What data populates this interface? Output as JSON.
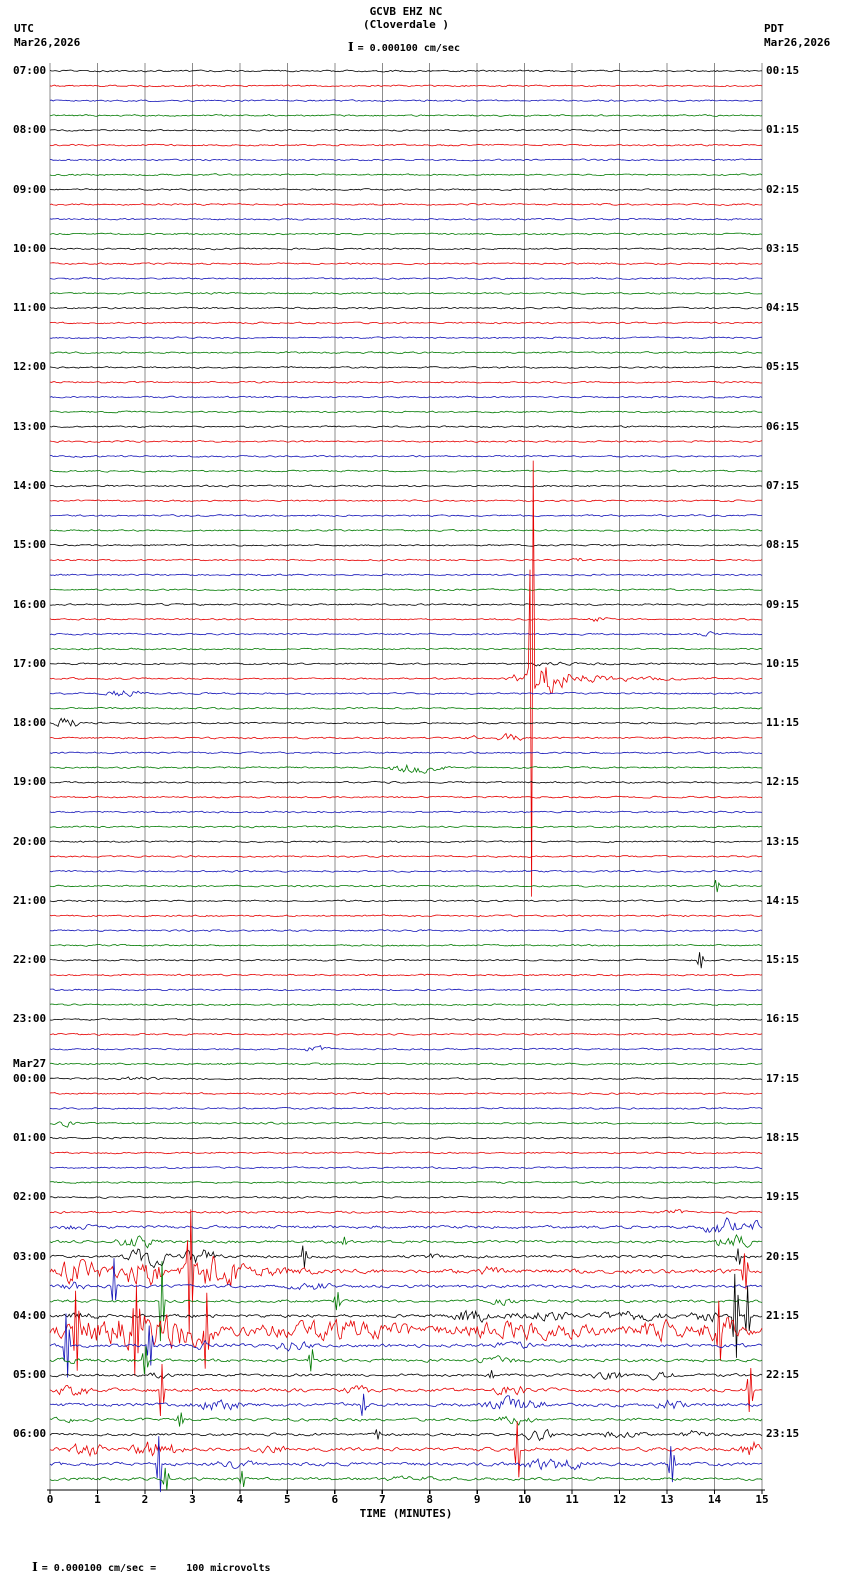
{
  "header": {
    "station_line": "GCVB EHZ NC",
    "location_line": "(Cloverdale )",
    "left_tz": "UTC",
    "left_date": "Mar26,2026",
    "right_tz": "PDT",
    "right_date": "Mar26,2026",
    "scale_text": "= 0.000100 cm/sec"
  },
  "footer": {
    "xlabel": "TIME (MINUTES)",
    "note": "= 0.000100 cm/sec =     100 microvolts",
    "x_ticks": [
      0,
      1,
      2,
      3,
      4,
      5,
      6,
      7,
      8,
      9,
      10,
      11,
      12,
      13,
      14,
      15
    ]
  },
  "chart_data": {
    "type": "seismogram-helicorder",
    "station": "GCVB EHZ NC",
    "location": "Cloverdale",
    "minutes_per_line": 15,
    "x_range": [
      0,
      15
    ],
    "row_count": 96,
    "trace_color_cycle": [
      "#000000",
      "#e60000",
      "#1414b8",
      "#007a00"
    ],
    "grid_color": "#8c8c8c",
    "base_noise": 1.2,
    "noise_overrides": {
      "77": 1.5,
      "78": 2.2,
      "79": 1.9,
      "80": 2.0,
      "81": 3.2,
      "82": 2.3,
      "83": 2.0,
      "84": 2.4,
      "85": 6.0,
      "86": 2.6,
      "87": 2.3,
      "88": 2.0,
      "89": 2.6,
      "90": 2.5,
      "91": 2.0,
      "92": 2.0,
      "93": 2.6,
      "94": 2.5,
      "95": 2.0
    },
    "utc_labels": [
      {
        "row": 0,
        "text": "07:00"
      },
      {
        "row": 4,
        "text": "08:00"
      },
      {
        "row": 8,
        "text": "09:00"
      },
      {
        "row": 12,
        "text": "10:00"
      },
      {
        "row": 16,
        "text": "11:00"
      },
      {
        "row": 20,
        "text": "12:00"
      },
      {
        "row": 24,
        "text": "13:00"
      },
      {
        "row": 28,
        "text": "14:00"
      },
      {
        "row": 32,
        "text": "15:00"
      },
      {
        "row": 36,
        "text": "16:00"
      },
      {
        "row": 40,
        "text": "17:00"
      },
      {
        "row": 44,
        "text": "18:00"
      },
      {
        "row": 48,
        "text": "19:00"
      },
      {
        "row": 52,
        "text": "20:00"
      },
      {
        "row": 56,
        "text": "21:00"
      },
      {
        "row": 60,
        "text": "22:00"
      },
      {
        "row": 64,
        "text": "23:00"
      },
      {
        "row": 67,
        "text": "Mar27"
      },
      {
        "row": 68,
        "text": "00:00"
      },
      {
        "row": 72,
        "text": "01:00"
      },
      {
        "row": 76,
        "text": "02:00"
      },
      {
        "row": 80,
        "text": "03:00"
      },
      {
        "row": 84,
        "text": "04:00"
      },
      {
        "row": 88,
        "text": "05:00"
      },
      {
        "row": 92,
        "text": "06:00"
      }
    ],
    "pdt_labels": [
      {
        "row": 0,
        "text": "00:15"
      },
      {
        "row": 4,
        "text": "01:15"
      },
      {
        "row": 8,
        "text": "02:15"
      },
      {
        "row": 12,
        "text": "03:15"
      },
      {
        "row": 16,
        "text": "04:15"
      },
      {
        "row": 20,
        "text": "05:15"
      },
      {
        "row": 24,
        "text": "06:15"
      },
      {
        "row": 28,
        "text": "07:15"
      },
      {
        "row": 32,
        "text": "08:15"
      },
      {
        "row": 36,
        "text": "09:15"
      },
      {
        "row": 40,
        "text": "10:15"
      },
      {
        "row": 44,
        "text": "11:15"
      },
      {
        "row": 48,
        "text": "12:15"
      },
      {
        "row": 52,
        "text": "13:15"
      },
      {
        "row": 56,
        "text": "14:15"
      },
      {
        "row": 60,
        "text": "15:15"
      },
      {
        "row": 64,
        "text": "16:15"
      },
      {
        "row": 68,
        "text": "17:15"
      },
      {
        "row": 72,
        "text": "18:15"
      },
      {
        "row": 76,
        "text": "19:15"
      },
      {
        "row": 80,
        "text": "20:15"
      },
      {
        "row": 84,
        "text": "21:15"
      },
      {
        "row": 88,
        "text": "22:15"
      },
      {
        "row": 92,
        "text": "23:15"
      }
    ],
    "events": [
      [
        33,
        "b",
        10.9,
        11.3,
        3
      ],
      [
        37,
        "b",
        11.3,
        11.8,
        3
      ],
      [
        38,
        "b",
        13.6,
        14.1,
        2.5
      ],
      [
        40,
        "d",
        10.2,
        12.5,
        3
      ],
      [
        41,
        "b",
        9.55,
        9.95,
        6
      ],
      [
        41,
        "b",
        9.95,
        10.75,
        35
      ],
      [
        41,
        "s",
        10.15,
        10.15,
        218
      ],
      [
        41,
        "d",
        10.75,
        14.2,
        11
      ],
      [
        42,
        "b",
        1.1,
        2.05,
        5
      ],
      [
        44,
        "b",
        0.05,
        0.65,
        8
      ],
      [
        45,
        "b",
        8.75,
        9.1,
        2.5
      ],
      [
        45,
        "b",
        9.35,
        10.05,
        6
      ],
      [
        47,
        "b",
        6.95,
        8.45,
        7
      ],
      [
        55,
        "s",
        14.05,
        14.05,
        6
      ],
      [
        60,
        "s",
        13.7,
        13.7,
        8
      ],
      [
        66,
        "b",
        5.25,
        6.0,
        3.5
      ],
      [
        68,
        "b",
        1.4,
        2.3,
        2.5
      ],
      [
        71,
        "b",
        0.0,
        0.6,
        4.5
      ],
      [
        77,
        "b",
        12.9,
        13.4,
        3
      ],
      [
        78,
        "b",
        0.2,
        0.9,
        3
      ],
      [
        78,
        "b",
        13.7,
        14.7,
        13
      ],
      [
        78,
        "b",
        14.7,
        15,
        7
      ],
      [
        79,
        "b",
        1.3,
        2.4,
        8
      ],
      [
        79,
        "s",
        6.2,
        6.2,
        5
      ],
      [
        79,
        "b",
        13.9,
        14.9,
        9
      ],
      [
        80,
        "b",
        1.45,
        2.65,
        13
      ],
      [
        80,
        "b",
        2.65,
        3.7,
        10
      ],
      [
        80,
        "s",
        5.35,
        5.35,
        11
      ],
      [
        80,
        "b",
        7.9,
        8.3,
        4
      ],
      [
        80,
        "s",
        14.5,
        14.5,
        8
      ],
      [
        81,
        "b",
        0.0,
        1.2,
        16
      ],
      [
        81,
        "b",
        1.2,
        2.6,
        20
      ],
      [
        81,
        "s",
        2.95,
        2.95,
        62
      ],
      [
        81,
        "b",
        2.6,
        4.3,
        24
      ],
      [
        81,
        "d",
        4.3,
        6.2,
        8
      ],
      [
        81,
        "b",
        9.0,
        9.6,
        5
      ],
      [
        81,
        "s",
        14.65,
        14.65,
        18
      ],
      [
        82,
        "b",
        0.2,
        0.8,
        5
      ],
      [
        82,
        "s",
        1.35,
        1.35,
        28
      ],
      [
        82,
        "b",
        4.9,
        6.1,
        4
      ],
      [
        83,
        "s",
        2.35,
        2.35,
        40
      ],
      [
        83,
        "s",
        6.05,
        6.05,
        9
      ],
      [
        83,
        "b",
        9.2,
        9.9,
        4
      ],
      [
        84,
        "b",
        0.3,
        1.2,
        4
      ],
      [
        84,
        "b",
        8.3,
        9.35,
        9
      ],
      [
        84,
        "b",
        9.5,
        11.2,
        6
      ],
      [
        84,
        "b",
        11.3,
        13.2,
        5
      ],
      [
        84,
        "b",
        13.4,
        14.15,
        9
      ],
      [
        84,
        "s",
        14.45,
        14.45,
        42
      ],
      [
        84,
        "s",
        14.7,
        14.7,
        30
      ],
      [
        85,
        "b",
        0.0,
        4.0,
        22
      ],
      [
        85,
        "s",
        0.55,
        0.55,
        40
      ],
      [
        85,
        "s",
        1.8,
        1.8,
        45
      ],
      [
        85,
        "s",
        3.3,
        3.3,
        38
      ],
      [
        85,
        "b",
        4.0,
        8.0,
        9
      ],
      [
        85,
        "b",
        8.0,
        12.0,
        7
      ],
      [
        85,
        "b",
        12.0,
        13.6,
        9
      ],
      [
        85,
        "s",
        14.1,
        14.1,
        30
      ],
      [
        85,
        "b",
        13.6,
        14.6,
        16
      ],
      [
        86,
        "s",
        0.35,
        0.35,
        32
      ],
      [
        86,
        "s",
        2.1,
        2.1,
        20
      ],
      [
        86,
        "b",
        2.9,
        3.6,
        5
      ],
      [
        86,
        "b",
        4.6,
        5.6,
        5
      ],
      [
        86,
        "b",
        9.3,
        10.2,
        4
      ],
      [
        87,
        "b",
        0.1,
        0.7,
        4
      ],
      [
        87,
        "s",
        2.0,
        2.0,
        14
      ],
      [
        87,
        "s",
        5.5,
        5.5,
        11
      ],
      [
        87,
        "b",
        8.9,
        10.0,
        4
      ],
      [
        88,
        "b",
        2.0,
        2.6,
        3
      ],
      [
        88,
        "s",
        9.3,
        9.3,
        5
      ],
      [
        88,
        "b",
        11.3,
        12.25,
        6
      ],
      [
        88,
        "b",
        12.5,
        13.2,
        5
      ],
      [
        89,
        "b",
        0.0,
        1.0,
        7
      ],
      [
        89,
        "s",
        2.35,
        2.35,
        26
      ],
      [
        89,
        "b",
        6.1,
        6.9,
        4
      ],
      [
        89,
        "b",
        9.3,
        10.1,
        7
      ],
      [
        89,
        "s",
        14.75,
        14.75,
        22
      ],
      [
        90,
        "b",
        2.9,
        4.2,
        7
      ],
      [
        90,
        "s",
        6.6,
        6.6,
        11
      ],
      [
        90,
        "b",
        9.0,
        10.6,
        8
      ],
      [
        90,
        "b",
        12.7,
        13.5,
        6
      ],
      [
        91,
        "b",
        0.0,
        0.55,
        4
      ],
      [
        91,
        "s",
        2.75,
        2.75,
        7
      ],
      [
        91,
        "b",
        9.35,
        10.25,
        6
      ],
      [
        92,
        "s",
        6.9,
        6.9,
        5
      ],
      [
        92,
        "b",
        9.8,
        10.7,
        7
      ],
      [
        92,
        "b",
        11.5,
        12.6,
        4.5
      ],
      [
        92,
        "b",
        13.2,
        14.1,
        5
      ],
      [
        93,
        "b",
        0.35,
        1.25,
        9
      ],
      [
        93,
        "b",
        1.6,
        2.9,
        11
      ],
      [
        93,
        "b",
        4.0,
        5.1,
        5
      ],
      [
        93,
        "s",
        9.85,
        9.85,
        28
      ],
      [
        93,
        "b",
        14.5,
        15,
        13
      ],
      [
        94,
        "s",
        2.3,
        2.3,
        28
      ],
      [
        94,
        "b",
        3.4,
        4.5,
        5
      ],
      [
        94,
        "b",
        9.85,
        11.4,
        9
      ],
      [
        94,
        "s",
        13.1,
        13.1,
        18
      ],
      [
        95,
        "s",
        2.45,
        2.45,
        11
      ],
      [
        95,
        "s",
        4.05,
        4.05,
        8
      ],
      [
        95,
        "b",
        7.0,
        8.1,
        3
      ]
    ]
  }
}
